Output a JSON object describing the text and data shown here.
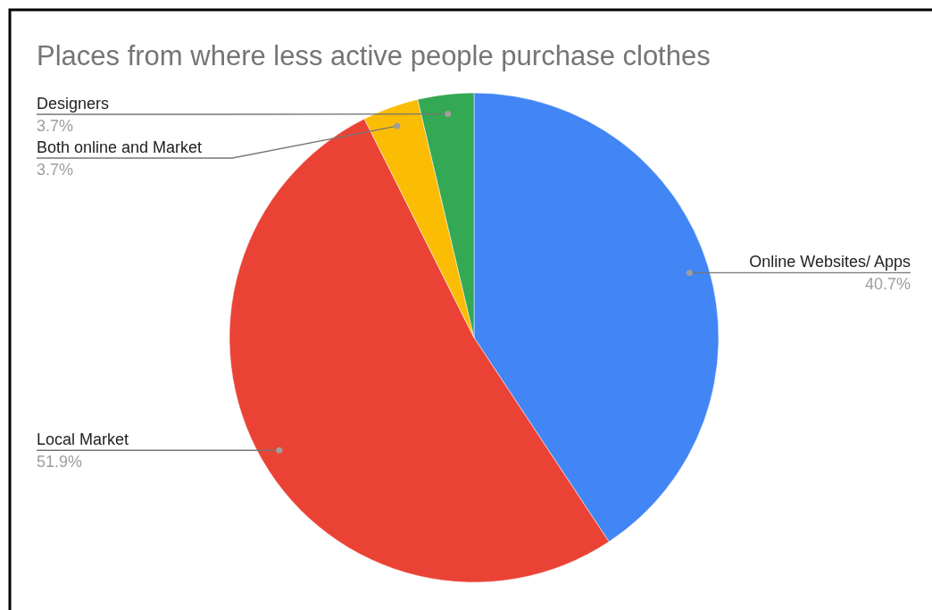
{
  "chart_data": {
    "type": "pie",
    "title": "Places from where less active people purchase clothes",
    "categories": [
      "Online Websites/ Apps",
      "Local Market",
      "Both online and Market",
      "Designers"
    ],
    "values": [
      40.7,
      51.9,
      3.7,
      3.7
    ],
    "colors": [
      "#4285f4",
      "#ea4335",
      "#fbbc04",
      "#34a853"
    ],
    "value_labels": [
      "40.7%",
      "51.9%",
      "3.7%",
      "3.7%"
    ]
  }
}
